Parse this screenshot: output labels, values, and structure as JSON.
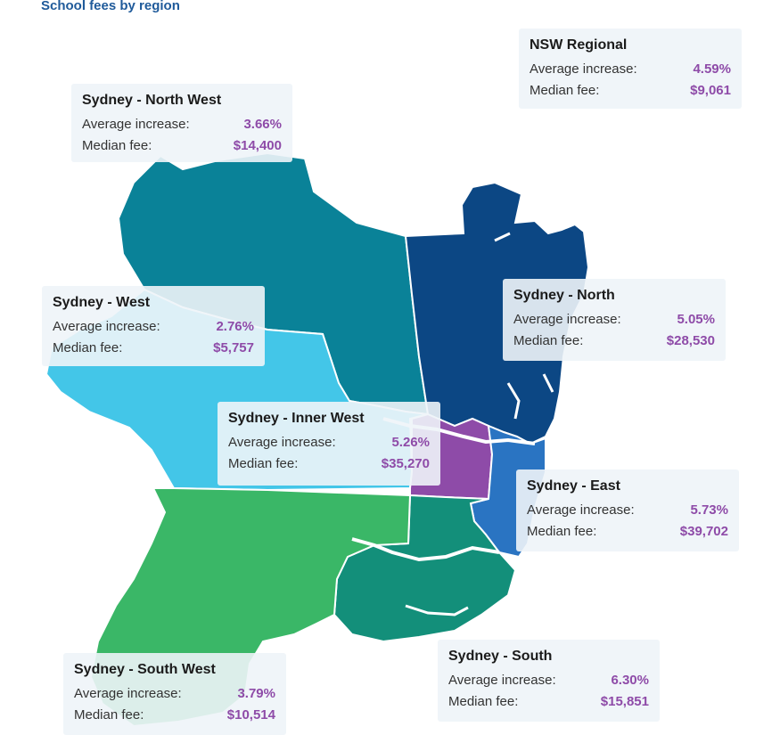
{
  "title": "School fees by region",
  "labels": {
    "avg": "Average increase:",
    "median": "Median fee:"
  },
  "regions": {
    "nsw_regional": {
      "name": "NSW Regional",
      "increase": "4.59%",
      "fee": "$9,061"
    },
    "north_west": {
      "name": "Sydney - North West",
      "increase": "3.66%",
      "fee": "$14,400",
      "color": "#0a8298"
    },
    "west": {
      "name": "Sydney - West",
      "increase": "2.76%",
      "fee": "$5,757",
      "color": "#43c6e8"
    },
    "north": {
      "name": "Sydney - North",
      "increase": "5.05%",
      "fee": "$28,530",
      "color": "#0c4784"
    },
    "inner_west": {
      "name": "Sydney - Inner West",
      "increase": "5.26%",
      "fee": "$35,270",
      "color": "#8e4ba8"
    },
    "east": {
      "name": "Sydney - East",
      "increase": "5.73%",
      "fee": "$39,702",
      "color": "#2a74c2"
    },
    "south": {
      "name": "Sydney - South",
      "increase": "6.30%",
      "fee": "$15,851",
      "color": "#138f7a"
    },
    "south_west": {
      "name": "Sydney - South West",
      "increase": "3.79%",
      "fee": "$10,514",
      "color": "#3ab767"
    }
  }
}
